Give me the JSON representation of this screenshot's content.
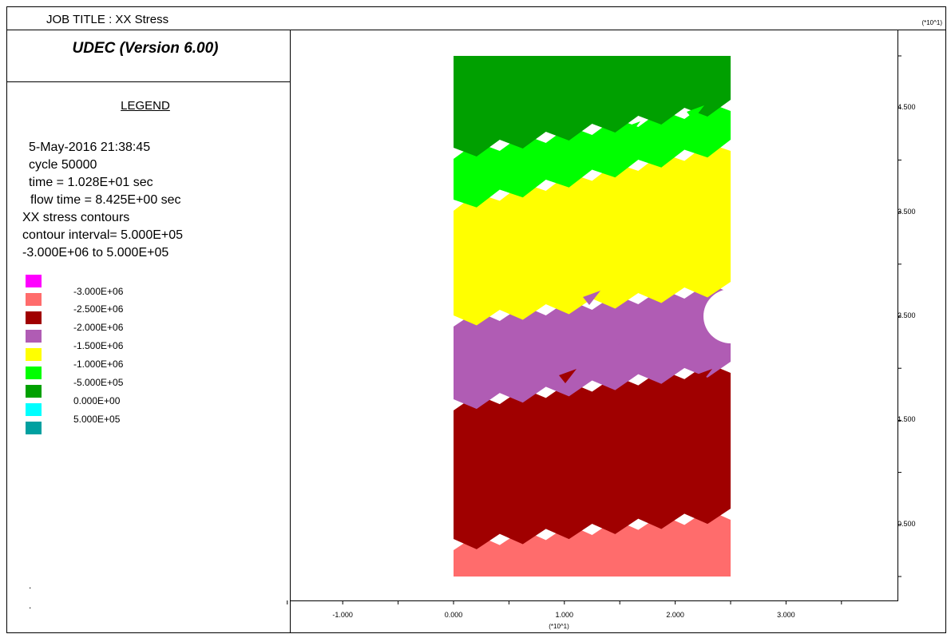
{
  "header": {
    "job_title": "JOB TITLE : XX Stress",
    "multiplier_top": "(*10^1)"
  },
  "app": {
    "version": "UDEC (Version 6.00)"
  },
  "legend": {
    "title": "LEGEND",
    "date_time": "5-May-2016  21:38:45",
    "cycle": "cycle    50000",
    "time": "time  =  1.028E+01 sec",
    "flow_time": "flow time = 8.425E+00 sec",
    "contour_name": "XX stress contours",
    "contour_interval": "contour interval= 5.000E+05",
    "contour_range": "-3.000E+06 to  5.000E+05",
    "keys": [
      {
        "label": "-3.000E+06",
        "color": "#ff00ff"
      },
      {
        "label": "-2.500E+06",
        "color": "#ff6c6c"
      },
      {
        "label": "-2.000E+06",
        "color": "#a00000"
      },
      {
        "label": "-1.500E+06",
        "color": "#b05cb4"
      },
      {
        "label": "-1.000E+06",
        "color": "#ffff00"
      },
      {
        "label": "-5.000E+05",
        "color": "#00ff00"
      },
      {
        "label": "0.000E+00",
        "color": "#00a000"
      },
      {
        "label": "5.000E+05",
        "color": "#00ffff"
      },
      {
        "label": "",
        "color": "#00a0a0"
      }
    ],
    "dots": [
      ".",
      "."
    ]
  },
  "chart_data": {
    "type": "heatmap",
    "title": "XX Stress",
    "axis_multiplier": "(*10^1)",
    "x_ticks": [
      "-1.000",
      "0.000",
      "1.000",
      "2.000",
      "3.000"
    ],
    "y_ticks": [
      "4.500",
      "3.500",
      "2.500",
      "1.500",
      "0.500"
    ],
    "xlim": [
      -1.6,
      3.9
    ],
    "ylim": [
      -0.2,
      5.0
    ],
    "model": {
      "x_range": [
        0,
        2.5
      ],
      "y_range": [
        0,
        5.0
      ]
    },
    "bands_bottom_to_top": [
      {
        "value": "-2.500E+06",
        "color": "#ff6c6c"
      },
      {
        "value": "-2.000E+06",
        "color": "#a00000"
      },
      {
        "value": "-1.500E+06",
        "color": "#b05cb4"
      },
      {
        "value": "-1.000E+06",
        "color": "#ffff00"
      },
      {
        "value": "-5.000E+05",
        "color": "#00ff00"
      },
      {
        "value": "0.000E+00",
        "color": "#00a000"
      }
    ],
    "opening": {
      "shape": "circle",
      "x": 2.5,
      "y": 2.5
    }
  }
}
